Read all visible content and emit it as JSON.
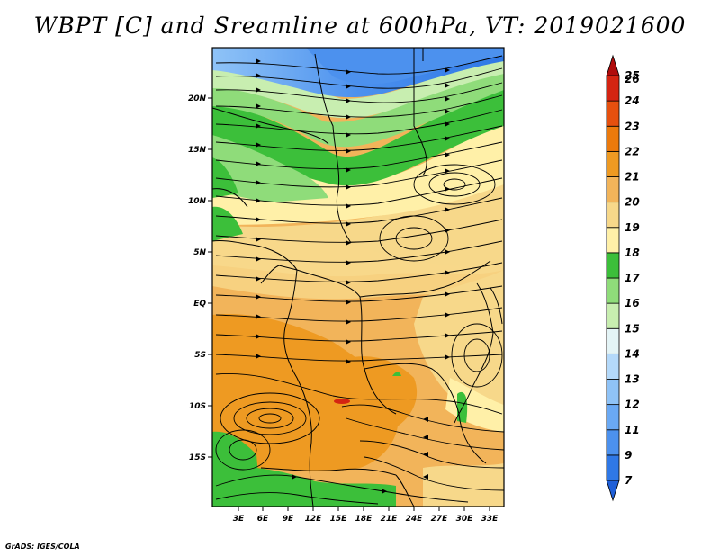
{
  "title": "WBPT [C] and Sreamline at 600hPa, VT: 2019021600",
  "credit": "GrADS: IGES/COLA",
  "map": {
    "lat_labels": [
      "20N",
      "15N",
      "10N",
      "5N",
      "EQ",
      "5S",
      "10S",
      "15S"
    ],
    "lon_labels": [
      "3E",
      "6E",
      "9E",
      "12E",
      "15E",
      "18E",
      "21E",
      "24E",
      "27E",
      "30E",
      "33E"
    ]
  },
  "colorbar": {
    "labels": [
      "7",
      "9",
      "11",
      "12",
      "13",
      "14",
      "15",
      "16",
      "17",
      "18",
      "19",
      "20",
      "21",
      "22",
      "23",
      "24",
      "25",
      "26"
    ],
    "colors": [
      "#1f5fd8",
      "#2f78e6",
      "#4c91ee",
      "#6aa9f4",
      "#8fc3f7",
      "#b4d9fa",
      "#e4f4f6",
      "#c8eeb0",
      "#8fdc7a",
      "#3cbf3a",
      "#fff0a8",
      "#f7d88a",
      "#f2b45a",
      "#ee9a22",
      "#ec7a0c",
      "#e6500e",
      "#d42412",
      "#b00c0c"
    ]
  }
}
